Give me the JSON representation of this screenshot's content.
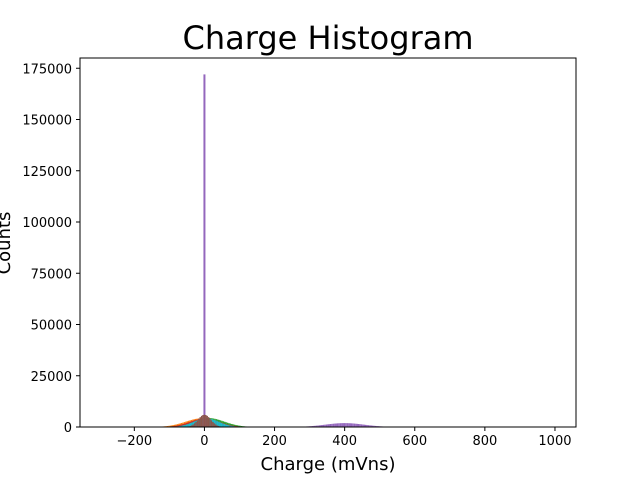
{
  "chart_data": {
    "type": "bar",
    "title": "Charge Histogram",
    "xlabel": "Charge (mVns)",
    "ylabel": "Counts",
    "xlim": [
      -355,
      1060
    ],
    "ylim": [
      0,
      180000
    ],
    "xticks": [
      -200,
      0,
      200,
      400,
      600,
      800,
      1000
    ],
    "xtick_labels": [
      "−200",
      "0",
      "200",
      "400",
      "600",
      "800",
      "1000"
    ],
    "yticks": [
      0,
      25000,
      50000,
      75000,
      100000,
      125000,
      150000,
      175000
    ],
    "ytick_labels": [
      "0",
      "25000",
      "50000",
      "75000",
      "100000",
      "125000",
      "150000",
      "175000"
    ],
    "grid": false,
    "series": [
      {
        "color": "#ff7f0e",
        "pedestal": {
          "center": -5,
          "sigma": 48,
          "peak": 4300
        },
        "signal": null
      },
      {
        "color": "#2ca02c",
        "pedestal": {
          "center": 10,
          "sigma": 46,
          "peak": 4400
        },
        "signal": null
      },
      {
        "color": "#d62728",
        "pedestal": {
          "center": 0,
          "sigma": 42,
          "peak": 4100
        },
        "signal": null
      },
      {
        "color": "#17becf",
        "pedestal": {
          "center": 5,
          "sigma": 36,
          "peak": 4200
        },
        "signal": null
      },
      {
        "color": "#9467bd",
        "pedestal": {
          "center": 0,
          "sigma": 5,
          "peak": 8000
        },
        "spike": {
          "x": 0,
          "count": 172000
        },
        "signal": {
          "center": 400,
          "sigma": 55,
          "peak": 1900,
          "xmin": 200,
          "xmax": 605
        }
      },
      {
        "color": "#8c564b",
        "pedestal": {
          "center": 0,
          "sigma": 18,
          "peak": 6000
        },
        "signal": null
      }
    ]
  }
}
